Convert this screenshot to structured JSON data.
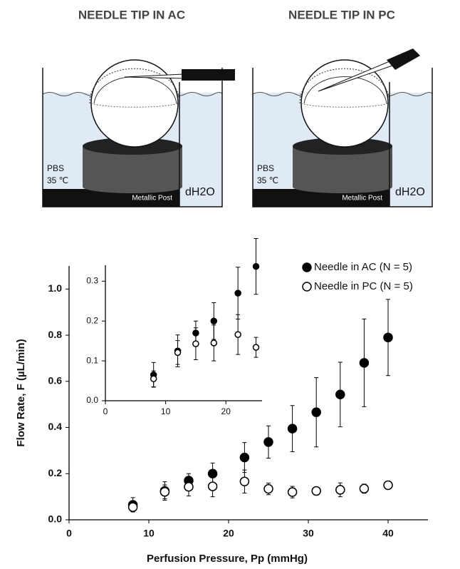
{
  "diagram": {
    "panels": [
      {
        "title": "NEEDLE TIP IN AC",
        "pbs": "PBS",
        "temperature": "35 ℃",
        "post": "Metallic Post",
        "water": "dH2O"
      },
      {
        "title": "NEEDLE TIP IN PC",
        "pbs": "PBS",
        "temperature": "35 ℃",
        "post": "Metallic Post",
        "water": "dH2O"
      }
    ]
  },
  "chart_data": [
    {
      "type": "scatter",
      "x_label": "Perfusion Pressure, Pp (mmHg)",
      "y_label": "Flow Rate, F (µL/min)",
      "x": [
        8,
        12,
        15,
        18,
        22,
        25,
        28,
        31,
        34,
        37,
        40
      ],
      "series": [
        {
          "name": "Needle in AC (N = 5)",
          "color": "#000000",
          "marker": "filled",
          "values": [
            0.065,
            0.125,
            0.17,
            0.2,
            0.27,
            0.337,
            0.395,
            0.466,
            0.543,
            0.68,
            0.79
          ],
          "errors": [
            0.031,
            0.04,
            0.03,
            0.046,
            0.065,
            0.07,
            0.1,
            0.15,
            0.14,
            0.19,
            0.165
          ]
        },
        {
          "name": "Needle in PC (N = 5)",
          "color": "#000000",
          "marker": "open",
          "values": [
            0.055,
            0.121,
            0.143,
            0.145,
            0.166,
            0.134,
            0.12,
            0.125,
            0.13,
            0.135,
            0.15
          ],
          "errors": [
            0.02,
            0.03,
            0.04,
            0.045,
            0.05,
            0.025,
            0.025,
            0.01,
            0.03,
            0.02,
            0.008
          ]
        }
      ],
      "xlim": [
        0,
        45
      ],
      "xticks": [
        0,
        10,
        20,
        30,
        40
      ],
      "ylim": [
        0,
        1.1
      ],
      "yticks": [
        {
          "value": 0,
          "label": "0.0"
        },
        0.2,
        0.4,
        0.6,
        0.8,
        {
          "value": 1,
          "label": "1.0"
        }
      ],
      "legend": "upper right",
      "grid": false
    },
    {
      "type": "scatter",
      "x": [
        8,
        12,
        15,
        18,
        22,
        25
      ],
      "series": [
        {
          "color": "#000000",
          "marker": "filled",
          "values": [
            0.065,
            0.125,
            0.17,
            0.2,
            0.27,
            0.337
          ],
          "errors": [
            0.031,
            0.04,
            0.03,
            0.046,
            0.065,
            0.07
          ]
        },
        {
          "color": "#000000",
          "marker": "open",
          "values": [
            0.055,
            0.121,
            0.143,
            0.145,
            0.166,
            0.134
          ],
          "errors": [
            0.02,
            0.03,
            0.04,
            0.045,
            0.05,
            0.025
          ]
        }
      ],
      "xlim": [
        0,
        26
      ],
      "xticks": [
        0,
        10,
        20
      ],
      "ylim": [
        0,
        0.34
      ],
      "yticks": [
        {
          "value": 0,
          "label": "0.0"
        },
        0.1,
        0.2,
        0.3
      ],
      "grid": false
    }
  ]
}
